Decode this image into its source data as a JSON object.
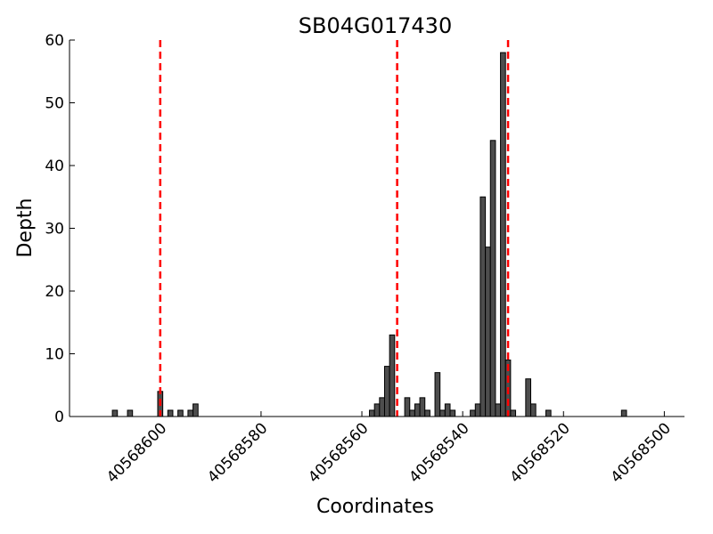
{
  "chart_data": {
    "type": "bar",
    "title": "SB04G017430",
    "xlabel": "Coordinates",
    "ylabel": "Depth",
    "x_reversed": true,
    "xlim": [
      40568618,
      40568496
    ],
    "ylim": [
      0,
      60
    ],
    "xticks": [
      40568600,
      40568580,
      40568560,
      40568540,
      40568520,
      40568500
    ],
    "yticks": [
      0,
      10,
      20,
      30,
      40,
      50,
      60
    ],
    "bar_width": 1,
    "bar_color": "#4d4d4d",
    "bar_edge_color": "#000000",
    "marker_color": "#ff0000",
    "markers": [
      40568600,
      40568553,
      40568531
    ],
    "bars": [
      {
        "x": 40568609,
        "y": 1
      },
      {
        "x": 40568606,
        "y": 1
      },
      {
        "x": 40568600,
        "y": 4
      },
      {
        "x": 40568598,
        "y": 1
      },
      {
        "x": 40568596,
        "y": 1
      },
      {
        "x": 40568594,
        "y": 1
      },
      {
        "x": 40568593,
        "y": 2
      },
      {
        "x": 40568558,
        "y": 1
      },
      {
        "x": 40568557,
        "y": 2
      },
      {
        "x": 40568556,
        "y": 3
      },
      {
        "x": 40568555,
        "y": 8
      },
      {
        "x": 40568554,
        "y": 13
      },
      {
        "x": 40568551,
        "y": 3
      },
      {
        "x": 40568550,
        "y": 1
      },
      {
        "x": 40568549,
        "y": 2
      },
      {
        "x": 40568548,
        "y": 3
      },
      {
        "x": 40568547,
        "y": 1
      },
      {
        "x": 40568545,
        "y": 7
      },
      {
        "x": 40568544,
        "y": 1
      },
      {
        "x": 40568543,
        "y": 2
      },
      {
        "x": 40568542,
        "y": 1
      },
      {
        "x": 40568538,
        "y": 1
      },
      {
        "x": 40568537,
        "y": 2
      },
      {
        "x": 40568536,
        "y": 35
      },
      {
        "x": 40568535,
        "y": 27
      },
      {
        "x": 40568534,
        "y": 44
      },
      {
        "x": 40568533,
        "y": 2
      },
      {
        "x": 40568532,
        "y": 58
      },
      {
        "x": 40568531,
        "y": 9
      },
      {
        "x": 40568530,
        "y": 1
      },
      {
        "x": 40568527,
        "y": 6
      },
      {
        "x": 40568526,
        "y": 2
      },
      {
        "x": 40568523,
        "y": 1
      },
      {
        "x": 40568508,
        "y": 1
      }
    ]
  }
}
